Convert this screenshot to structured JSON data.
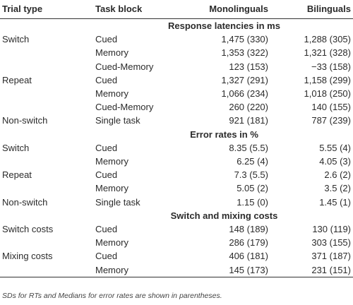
{
  "headers": [
    "Trial type",
    "Task block",
    "Monolinguals",
    "Bilinguals"
  ],
  "rows": [
    {
      "section": "Response latencies in ms"
    },
    {
      "cells": [
        "Switch",
        "Cued",
        "1,475 (330)",
        "1,288 (305)"
      ]
    },
    {
      "cells": [
        "",
        "Memory",
        "1,353 (322)",
        "1,321 (328)"
      ]
    },
    {
      "cells": [
        "",
        "Cued-Memory",
        "123 (153)",
        "−33 (158)"
      ]
    },
    {
      "cells": [
        "Repeat",
        "Cued",
        "1,327 (291)",
        "1,158 (299)"
      ]
    },
    {
      "cells": [
        "",
        "Memory",
        "1,066 (234)",
        "1,018 (250)"
      ]
    },
    {
      "cells": [
        "",
        "Cued-Memory",
        "260 (220)",
        "140 (155)"
      ]
    },
    {
      "cells": [
        "Non-switch",
        "Single task",
        "921 (181)",
        "787 (239)"
      ]
    },
    {
      "section": "Error rates in %"
    },
    {
      "cells": [
        "Switch",
        "Cued",
        "8.35 (5.5)",
        "5.55 (4)"
      ]
    },
    {
      "cells": [
        "",
        "Memory",
        "6.25 (4)",
        "4.05 (3)"
      ]
    },
    {
      "cells": [
        "Repeat",
        "Cued",
        "7.3 (5.5)",
        "2.6 (2)"
      ]
    },
    {
      "cells": [
        "",
        "Memory",
        "5.05 (2)",
        "3.5 (2)"
      ]
    },
    {
      "cells": [
        "Non-switch",
        "Single task",
        "1.15 (0)",
        "1.45 (1)"
      ]
    },
    {
      "section": "Switch and mixing costs"
    },
    {
      "cells": [
        "Switch costs",
        "Cued",
        "148 (189)",
        "130 (119)"
      ]
    },
    {
      "cells": [
        "",
        "Memory",
        "286 (179)",
        "303 (155)"
      ]
    },
    {
      "cells": [
        "Mixing costs",
        "Cued",
        "406 (181)",
        "371 (187)"
      ]
    },
    {
      "cells": [
        "",
        "Memory",
        "145 (173)",
        "231 (151)"
      ]
    }
  ],
  "footnote": "SDs for RTs and Medians for error rates are shown in parentheses."
}
